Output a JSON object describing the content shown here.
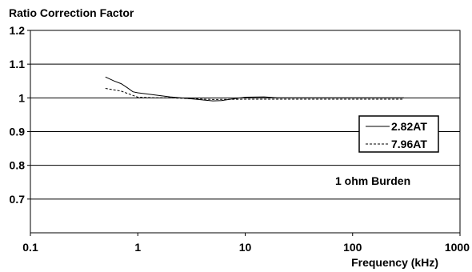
{
  "chart_data": {
    "type": "line",
    "title": "Ratio Correction Factor",
    "xlabel": "Frequency (kHz)",
    "ylabel": "",
    "xscale": "log",
    "xlim": [
      0.1,
      1000
    ],
    "ylim": [
      0.6,
      1.2
    ],
    "x_ticks": [
      "0.1",
      "1",
      "10",
      "100",
      "1000"
    ],
    "y_ticks": [
      "1.2",
      "1.1",
      "1",
      "0.9",
      "0.8",
      "0.7"
    ],
    "grid": "horizontal",
    "legend_position": "right",
    "annotation": "1 ohm Burden",
    "series": [
      {
        "name": "2.82AT",
        "style": "solid",
        "color": "#000000",
        "x": [
          0.5,
          0.6,
          0.7,
          0.8,
          0.9,
          1.0,
          1.5,
          2,
          3,
          4,
          5,
          6,
          8,
          10,
          15,
          20,
          30,
          50,
          100,
          200,
          300
        ],
        "y": [
          1.062,
          1.05,
          1.042,
          1.03,
          1.018,
          1.015,
          1.008,
          1.003,
          0.998,
          0.994,
          0.991,
          0.992,
          0.998,
          1.002,
          1.003,
          1.0,
          1.0,
          1.0,
          1.0,
          1.0,
          1.0
        ]
      },
      {
        "name": "7.96AT",
        "style": "dashed",
        "color": "#000000",
        "x": [
          0.5,
          0.7,
          1.0,
          1.5,
          2,
          3,
          5,
          10,
          20,
          50,
          100,
          200,
          300
        ],
        "y": [
          1.028,
          1.02,
          1.002,
          1.0,
          1.0,
          0.998,
          0.995,
          0.996,
          0.996,
          0.996,
          0.996,
          0.996,
          0.996
        ]
      }
    ]
  }
}
